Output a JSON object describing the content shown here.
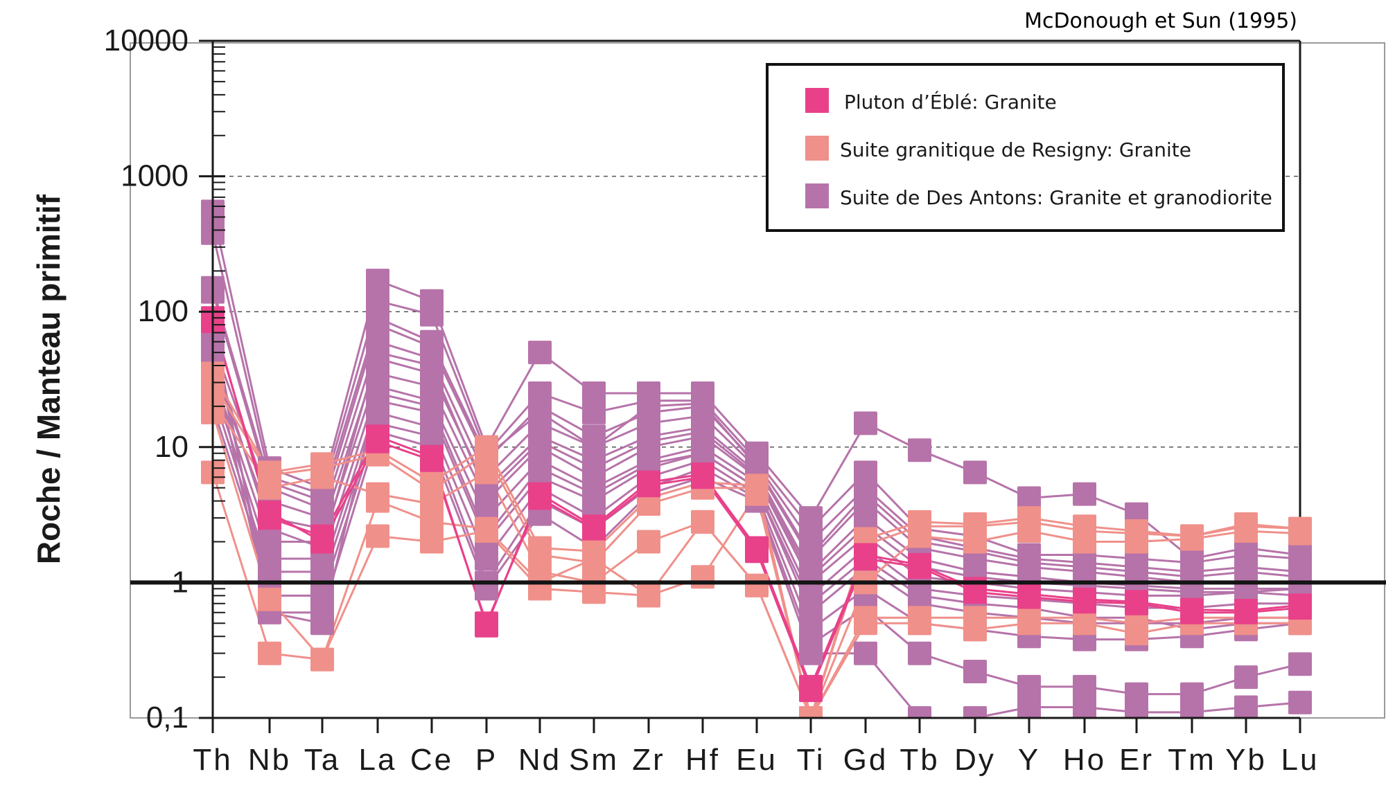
{
  "chart_data": {
    "type": "line",
    "subtype": "spider-diagram",
    "reference": "McDonough et Sun (1995)",
    "ylabel": "Roche / Manteau primitif",
    "xlabel": "",
    "yscale": "log",
    "ylim": [
      0.1,
      10000
    ],
    "y_ticks": [
      {
        "value": 10000,
        "label": "10000"
      },
      {
        "value": 1000,
        "label": "1000"
      },
      {
        "value": 100,
        "label": "100"
      },
      {
        "value": 10,
        "label": "10"
      },
      {
        "value": 1,
        "label": "1"
      },
      {
        "value": 0.1,
        "label": "0,1"
      }
    ],
    "grid": "dashed at 10, 100, 1000",
    "reference_line": 1,
    "categories": [
      "Th",
      "Nb",
      "Ta",
      "La",
      "Ce",
      "P",
      "Nd",
      "Sm",
      "Zr",
      "Hf",
      "Eu",
      "Ti",
      "Gd",
      "Tb",
      "Dy",
      "Y",
      "Ho",
      "Er",
      "Tm",
      "Yb",
      "Lu"
    ],
    "legend_position": "top-right",
    "groups": [
      {
        "name": "Pluton d’Éblé: Granite",
        "color": "#E8418A"
      },
      {
        "name": "Suite granitique de Resigny: Granite",
        "color": "#F0908A"
      },
      {
        "name": "Suite de Des Antons: Granite et granodiorite",
        "color": "#B673A9"
      }
    ],
    "series": [
      {
        "group": 2,
        "values": [
          550,
          7,
          5,
          170,
          120,
          10,
          50,
          25,
          25,
          25,
          9,
          3,
          15,
          9.5,
          6.5,
          4.2,
          4.5,
          3.2,
          1.5,
          1.8,
          1.6
        ]
      },
      {
        "group": 2,
        "values": [
          380,
          6,
          4.5,
          120,
          95,
          9,
          25,
          18,
          22,
          22,
          8,
          2.5,
          6.5,
          2.5,
          2.2,
          1.6,
          1.6,
          1.5,
          1.4,
          1.6,
          1.5
        ]
      },
      {
        "group": 2,
        "values": [
          140,
          5,
          3.5,
          80,
          55,
          8,
          20,
          12,
          18,
          20,
          7.5,
          2,
          5,
          2.2,
          1.8,
          1.5,
          1.4,
          1.3,
          1.2,
          1.3,
          1.2
        ]
      },
      {
        "group": 2,
        "values": [
          60,
          4,
          3,
          60,
          45,
          6,
          15,
          10,
          15,
          17,
          7,
          1.5,
          4,
          1.8,
          1.5,
          1.3,
          1.2,
          1.1,
          1.0,
          1.0,
          1.0
        ]
      },
      {
        "group": 2,
        "values": [
          40,
          3,
          2.5,
          45,
          35,
          5,
          12,
          8,
          12,
          14,
          6.5,
          1.2,
          3,
          1.5,
          1.2,
          1.1,
          1.0,
          0.95,
          0.9,
          0.9,
          0.9
        ]
      },
      {
        "group": 2,
        "values": [
          35,
          2,
          2,
          35,
          28,
          4,
          10,
          6,
          10,
          12,
          6,
          1.0,
          2.2,
          1.1,
          1.0,
          0.9,
          0.85,
          0.8,
          0.8,
          0.85,
          0.8
        ]
      },
      {
        "group": 2,
        "values": [
          30,
          1.5,
          1.5,
          28,
          22,
          3,
          8,
          5,
          8,
          10,
          5.5,
          0.8,
          1.8,
          0.9,
          0.8,
          0.75,
          0.7,
          0.65,
          0.65,
          0.7,
          0.7
        ]
      },
      {
        "group": 2,
        "values": [
          25,
          1.2,
          1.2,
          22,
          18,
          2,
          6,
          4,
          7,
          9,
          5,
          0.6,
          1.3,
          0.7,
          0.6,
          0.55,
          0.5,
          0.5,
          0.5,
          0.55,
          0.55
        ]
      },
      {
        "group": 2,
        "values": [
          20,
          1.0,
          1.0,
          18,
          14,
          1.5,
          5,
          3,
          6,
          8,
          4.5,
          0.45,
          0.9,
          0.5,
          0.45,
          0.4,
          0.38,
          0.38,
          0.4,
          0.45,
          0.5
        ]
      },
      {
        "group": 2,
        "values": [
          60,
          0.8,
          0.8,
          15,
          12,
          1.0,
          4,
          2.5,
          5,
          7,
          4.2,
          0.35,
          0.65,
          0.3,
          0.22,
          0.17,
          0.17,
          0.15,
          0.15,
          0.2,
          0.25
        ]
      },
      {
        "group": 2,
        "values": [
          80,
          0.6,
          0.6,
          13,
          10,
          0.9,
          3.2,
          1.8,
          4.5,
          6,
          4,
          0.3,
          0.3,
          0.1,
          0.1,
          0.12,
          0.12,
          0.11,
          0.11,
          0.12,
          0.13
        ]
      },
      {
        "group": 2,
        "values": [
          150,
          5.5,
          4,
          90,
          60,
          8.5,
          18,
          10,
          20,
          21,
          7.2,
          1.6,
          4.5,
          2.0,
          1.7,
          1.4,
          1.3,
          1.2,
          1.1,
          1.2,
          1.1
        ]
      },
      {
        "group": 2,
        "values": [
          50,
          2.5,
          1.8,
          50,
          40,
          4.5,
          11,
          7,
          11,
          13,
          6.2,
          1.1,
          2.6,
          1.3,
          1.1,
          1.0,
          0.95,
          0.9,
          0.85,
          0.85,
          0.9
        ]
      },
      {
        "group": 2,
        "values": [
          45,
          0.6,
          0.5,
          25,
          20,
          2.2,
          7,
          4.5,
          7.5,
          9,
          5,
          0.7,
          1.5,
          0.8,
          0.7,
          0.65,
          0.55,
          0.55,
          0.45,
          0.5,
          0.5
        ]
      },
      {
        "group": 1,
        "values": [
          30,
          6.2,
          7.0,
          8.8,
          4.8,
          9.0,
          1.6,
          1.4,
          3.8,
          5.0,
          5.0,
          0.1,
          1.9,
          2.6,
          2.6,
          2.8,
          2.4,
          2.3,
          2.2,
          2.6,
          2.5
        ]
      },
      {
        "group": 1,
        "values": [
          22,
          5.0,
          6.0,
          4.5,
          3.8,
          6.5,
          1.2,
          1.0,
          2.0,
          2.8,
          0.95,
          0.1,
          1.0,
          2.2,
          2.0,
          2.4,
          2.0,
          2.0,
          2.1,
          2.4,
          2.3
        ]
      },
      {
        "group": 1,
        "values": [
          18,
          0.75,
          0.27,
          4.0,
          2.8,
          2.5,
          1.0,
          1.5,
          0.8,
          1.1,
          4.5,
          0.1,
          0.55,
          0.55,
          0.55,
          0.55,
          0.55,
          0.5,
          0.55,
          0.55,
          0.55
        ]
      },
      {
        "group": 1,
        "values": [
          6.5,
          0.3,
          0.27,
          2.2,
          2.0,
          2.4,
          0.9,
          0.85,
          0.8,
          2.8,
          0.95,
          0.1,
          0.5,
          0.5,
          0.45,
          0.5,
          0.5,
          0.42,
          0.5,
          0.5,
          0.5
        ]
      },
      {
        "group": 1,
        "values": [
          35,
          6.5,
          7.5,
          9.5,
          5.5,
          10,
          1.8,
          1.7,
          4.2,
          5.5,
          5.2,
          0.1,
          2.1,
          2.8,
          2.7,
          3.0,
          2.6,
          2.4,
          2.2,
          2.7,
          2.5
        ]
      },
      {
        "group": 0,
        "values": [
          90,
          3.0,
          2.2,
          12,
          8.5,
          0.48,
          4.5,
          2.6,
          5.5,
          6.3,
          1.8,
          0.17,
          1.6,
          1.35,
          0.9,
          0.82,
          0.75,
          0.72,
          0.63,
          0.62,
          0.68
        ]
      },
      {
        "group": 0,
        "values": [
          85,
          3.3,
          2.0,
          11,
          8.0,
          0.5,
          4.2,
          2.5,
          5.2,
          6.0,
          1.7,
          0.16,
          1.5,
          1.3,
          0.85,
          0.78,
          0.72,
          0.7,
          0.6,
          0.6,
          0.65
        ]
      }
    ]
  }
}
